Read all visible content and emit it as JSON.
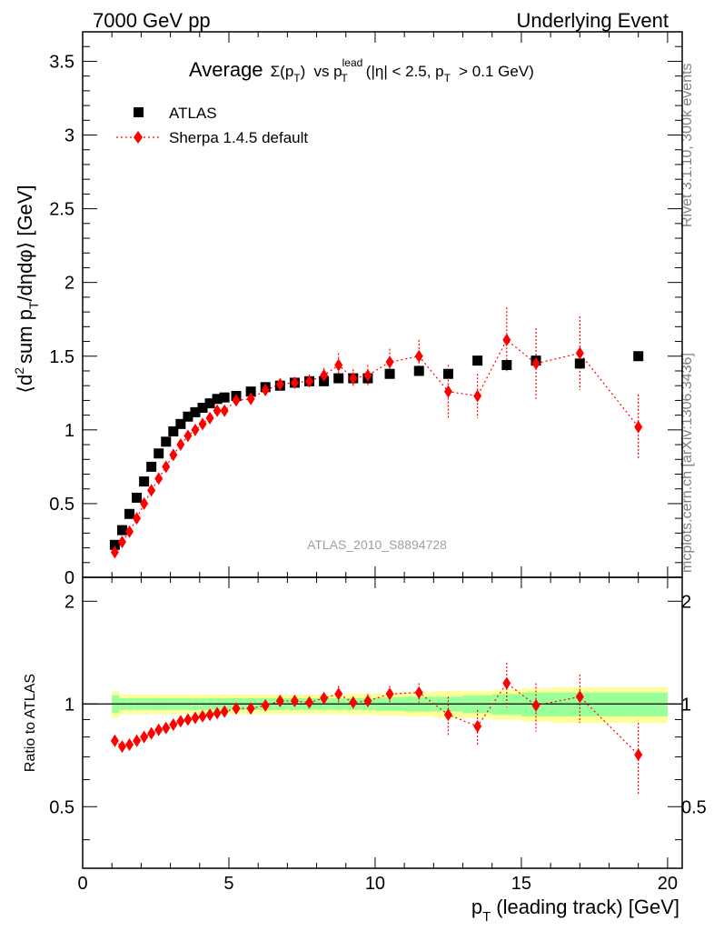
{
  "header": {
    "left": "7000 GeV pp",
    "right": "Underlying Event"
  },
  "side_labels": {
    "rivet": "Rivet 3.1.10,  300k events",
    "mcplots": "mcplots.cern.ch [arXiv:1306.3436]"
  },
  "plot_title": {
    "average": "Average",
    "sigma": "Σ(p",
    "t": "T",
    "close": ")",
    "vs": "vs p",
    "lead_sup": "lead",
    "lead_sub": "T",
    "cuts_a": "(|η| < 2.5, p",
    "cuts_sub": "T",
    "cuts_b": "> 0.1 GeV)"
  },
  "watermark": "ATLAS_2010_S8894728",
  "legend": {
    "atlas": "ATLAS",
    "sherpa": "Sherpa 1.4.5 default"
  },
  "xlabel": {
    "p": "p",
    "sub": "T",
    "rest": "(leading track) [GeV]"
  },
  "ylabel": {
    "a": "⟨d",
    "sup2": "2",
    "b": "sum p",
    "subT": "T",
    "c": "/dηdφ⟩ [GeV]"
  },
  "ratio_ylabel": "Ratio to ATLAS",
  "colors": {
    "atlas": "#000000",
    "sherpa": "#ff0000",
    "band_inner": "#99ff99",
    "band_outer": "#ffff99"
  },
  "chart_data": [
    {
      "type": "scatter",
      "panel": "main",
      "xlim": [
        0,
        20.5
      ],
      "ylim": [
        0,
        3.7
      ],
      "xticks": [
        "0",
        "5",
        "10",
        "15",
        "20"
      ],
      "xtick_values": [
        0,
        5,
        10,
        15,
        20
      ],
      "yticks": [
        "0",
        "0.5",
        "1",
        "1.5",
        "2",
        "2.5",
        "3",
        "3.5"
      ],
      "ytick_values": [
        0,
        0.5,
        1,
        1.5,
        2,
        2.5,
        3,
        3.5
      ],
      "series": [
        {
          "name": "ATLAS",
          "x": [
            1.1,
            1.35,
            1.6,
            1.85,
            2.1,
            2.35,
            2.6,
            2.85,
            3.1,
            3.35,
            3.6,
            3.85,
            4.1,
            4.35,
            4.6,
            4.85,
            5.25,
            5.75,
            6.25,
            6.75,
            7.25,
            7.75,
            8.25,
            8.75,
            9.25,
            9.75,
            10.5,
            11.5,
            12.5,
            13.5,
            14.5,
            15.5,
            17.0,
            19.0
          ],
          "y": [
            0.22,
            0.32,
            0.43,
            0.54,
            0.65,
            0.75,
            0.84,
            0.92,
            0.99,
            1.04,
            1.09,
            1.12,
            1.15,
            1.18,
            1.21,
            1.22,
            1.23,
            1.26,
            1.29,
            1.3,
            1.32,
            1.33,
            1.33,
            1.35,
            1.35,
            1.35,
            1.38,
            1.4,
            1.38,
            1.47,
            1.44,
            1.47,
            1.45,
            1.5
          ]
        },
        {
          "name": "Sherpa 1.4.5 default",
          "x": [
            1.1,
            1.35,
            1.6,
            1.85,
            2.1,
            2.35,
            2.6,
            2.85,
            3.1,
            3.35,
            3.6,
            3.85,
            4.1,
            4.35,
            4.6,
            4.85,
            5.25,
            5.75,
            6.25,
            6.75,
            7.25,
            7.75,
            8.25,
            8.75,
            9.25,
            9.75,
            10.5,
            11.5,
            12.5,
            13.5,
            14.5,
            15.5,
            17.0,
            19.0
          ],
          "y": [
            0.17,
            0.24,
            0.31,
            0.4,
            0.5,
            0.59,
            0.67,
            0.75,
            0.83,
            0.9,
            0.96,
            1.0,
            1.04,
            1.08,
            1.13,
            1.13,
            1.2,
            1.21,
            1.27,
            1.31,
            1.32,
            1.33,
            1.37,
            1.44,
            1.35,
            1.37,
            1.46,
            1.5,
            1.26,
            1.23,
            1.61,
            1.45,
            1.52,
            1.02
          ],
          "err": [
            0.005,
            0.005,
            0.005,
            0.006,
            0.007,
            0.008,
            0.008,
            0.009,
            0.01,
            0.01,
            0.012,
            0.012,
            0.015,
            0.015,
            0.018,
            0.02,
            0.02,
            0.025,
            0.03,
            0.035,
            0.04,
            0.045,
            0.05,
            0.08,
            0.06,
            0.07,
            0.09,
            0.11,
            0.18,
            0.15,
            0.22,
            0.24,
            0.25,
            0.22
          ]
        }
      ]
    },
    {
      "type": "scatter",
      "panel": "ratio",
      "ylabel": "Ratio to ATLAS",
      "xlim": [
        0,
        20.5
      ],
      "ylim": [
        0.33,
        2.35
      ],
      "log_scale_y": true,
      "yticks": [
        "0.5",
        "1",
        "2"
      ],
      "ytick_values": [
        0.5,
        1,
        2
      ],
      "reference_line": 1.0,
      "bands": {
        "x_edges": [
          1.0,
          1.25,
          1.5,
          1.75,
          2.0,
          2.25,
          2.5,
          2.75,
          3.0,
          3.25,
          3.5,
          3.75,
          4.0,
          4.25,
          4.5,
          4.75,
          5.0,
          5.5,
          6.0,
          6.5,
          7.0,
          7.5,
          8.0,
          8.5,
          9.0,
          9.5,
          10.0,
          11.0,
          12.0,
          13.0,
          14.0,
          15.0,
          16.0,
          18.0,
          20.0
        ],
        "inner": [
          0.06,
          0.04,
          0.04,
          0.04,
          0.04,
          0.04,
          0.04,
          0.04,
          0.04,
          0.04,
          0.04,
          0.04,
          0.04,
          0.04,
          0.04,
          0.04,
          0.04,
          0.04,
          0.04,
          0.04,
          0.04,
          0.04,
          0.04,
          0.04,
          0.04,
          0.04,
          0.045,
          0.05,
          0.05,
          0.06,
          0.07,
          0.08,
          0.08,
          0.08
        ],
        "outer": [
          0.09,
          0.065,
          0.065,
          0.065,
          0.065,
          0.065,
          0.065,
          0.065,
          0.065,
          0.065,
          0.065,
          0.065,
          0.065,
          0.065,
          0.065,
          0.065,
          0.065,
          0.065,
          0.065,
          0.065,
          0.065,
          0.065,
          0.065,
          0.065,
          0.07,
          0.07,
          0.075,
          0.08,
          0.09,
          0.09,
          0.1,
          0.11,
          0.12,
          0.12
        ]
      },
      "series": [
        {
          "name": "Sherpa 1.4.5 default",
          "x": [
            1.1,
            1.35,
            1.6,
            1.85,
            2.1,
            2.35,
            2.6,
            2.85,
            3.1,
            3.35,
            3.6,
            3.85,
            4.1,
            4.35,
            4.6,
            4.85,
            5.25,
            5.75,
            6.25,
            6.75,
            7.25,
            7.75,
            8.25,
            8.75,
            9.25,
            9.75,
            10.5,
            11.5,
            12.5,
            13.5,
            14.5,
            15.5,
            17.0,
            19.0
          ],
          "y": [
            0.78,
            0.75,
            0.76,
            0.78,
            0.8,
            0.82,
            0.84,
            0.85,
            0.87,
            0.89,
            0.9,
            0.91,
            0.92,
            0.93,
            0.94,
            0.95,
            0.97,
            0.97,
            0.99,
            1.02,
            1.02,
            1.01,
            1.04,
            1.07,
            1.01,
            1.02,
            1.07,
            1.08,
            0.93,
            0.86,
            1.15,
            0.99,
            1.05,
            0.71
          ],
          "err": [
            0.005,
            0.005,
            0.005,
            0.005,
            0.005,
            0.005,
            0.005,
            0.005,
            0.005,
            0.006,
            0.006,
            0.007,
            0.008,
            0.008,
            0.01,
            0.012,
            0.012,
            0.015,
            0.018,
            0.02,
            0.025,
            0.03,
            0.035,
            0.06,
            0.04,
            0.05,
            0.06,
            0.07,
            0.12,
            0.1,
            0.17,
            0.16,
            0.17,
            0.17
          ]
        }
      ]
    }
  ]
}
